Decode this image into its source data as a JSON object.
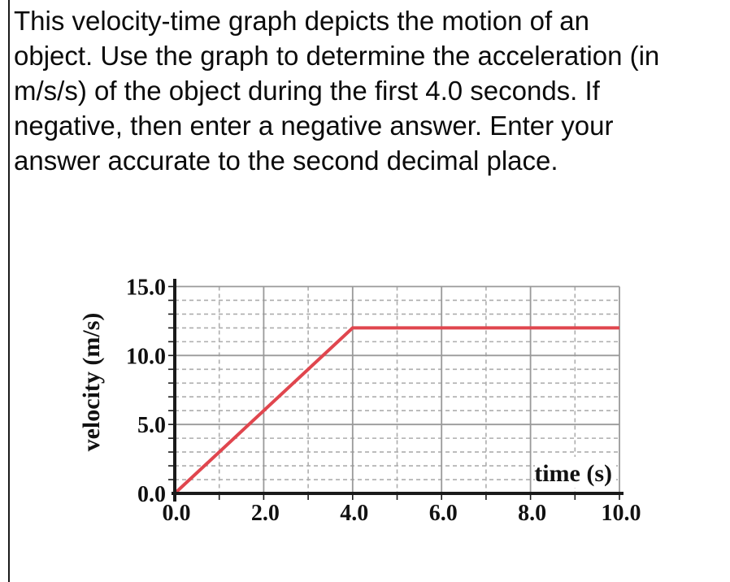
{
  "question": {
    "lines": [
      "This velocity-time graph depicts the motion of an",
      "object. Use the graph to determine the acceleration (in",
      "m/s/s) of the object during the first 4.0 seconds. If",
      "negative, then enter a negative answer. Enter your",
      "answer accurate to the second decimal place."
    ]
  },
  "chart_data": {
    "type": "line",
    "title": "",
    "xlabel": "time (s)",
    "ylabel": "velocity (m/s)",
    "xlim": [
      0,
      10
    ],
    "ylim": [
      0,
      15
    ],
    "x_major_ticks": [
      {
        "value": 0,
        "label": "0.0"
      },
      {
        "value": 2,
        "label": "2.0"
      },
      {
        "value": 4,
        "label": "4.0"
      },
      {
        "value": 6,
        "label": "6.0"
      },
      {
        "value": 8,
        "label": "8.0"
      },
      {
        "value": 10,
        "label": "10.0"
      }
    ],
    "y_major_ticks": [
      {
        "value": 0,
        "label": "0.0"
      },
      {
        "value": 5,
        "label": "5.0"
      },
      {
        "value": 10,
        "label": "10.0"
      },
      {
        "value": 15,
        "label": "15.0"
      }
    ],
    "x_minor_tick_step": 1.0,
    "y_minor_tick_step": 1.0,
    "grid": {
      "major_color": "#9a9a9a",
      "minor_color": "#adadad",
      "minor_style": "dashed",
      "axis_color": "#1a1a1a"
    },
    "series": [
      {
        "name": "velocity",
        "color": "#e0464e",
        "points": [
          [
            0,
            0
          ],
          [
            4,
            12
          ],
          [
            10,
            12
          ]
        ]
      }
    ],
    "legend": "none"
  }
}
